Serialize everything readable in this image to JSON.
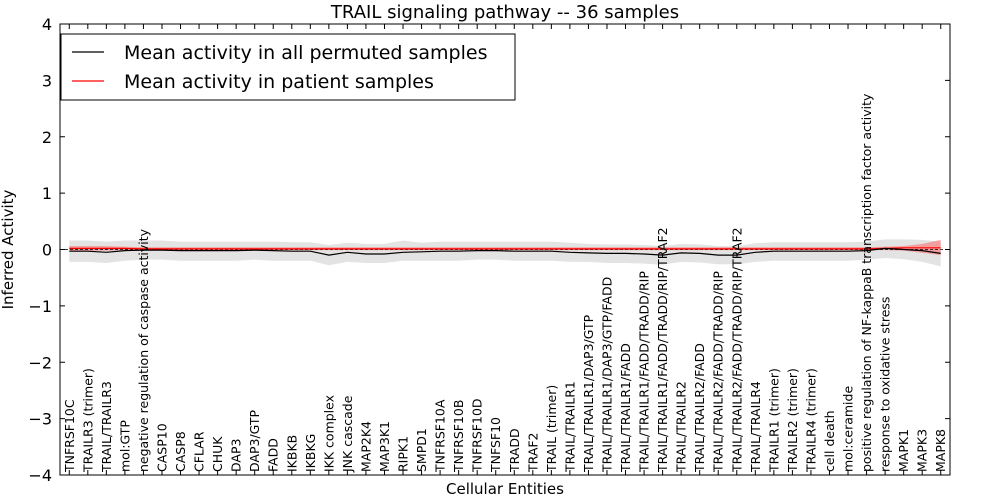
{
  "chart_data": {
    "type": "line",
    "title": "TRAIL signaling pathway -- 36 samples",
    "xlabel": "Cellular Entities",
    "ylabel": "Inferred Activity",
    "ylim": [
      -4,
      4
    ],
    "yticks": [
      -4,
      -3,
      -2,
      -1,
      0,
      1,
      2,
      3,
      4
    ],
    "ytick_labels": [
      "−4",
      "−3",
      "−2",
      "−1",
      "0",
      "1",
      "2",
      "3",
      "4"
    ],
    "grid": false,
    "legend_position": "top-left",
    "categories": [
      "TNFRSF10C",
      "TRAILR3 (trimer)",
      "TRAIL/TRAILR3",
      "mol:GTP",
      "negative regulation of caspase activity",
      "CASP10",
      "CASP8",
      "CFLAR",
      "CHUK",
      "DAP3",
      "DAP3/GTP",
      "FADD",
      "IKBKB",
      "IKBKG",
      "IKK complex",
      "JNK cascade",
      "MAP2K4",
      "MAP3K1",
      "RIPK1",
      "SMPD1",
      "TNFRSF10A",
      "TNFRSF10B",
      "TNFRSF10D",
      "TNFSF10",
      "TRADD",
      "TRAF2",
      "TRAIL (trimer)",
      "TRAIL/TRAILR1",
      "TRAIL/TRAILR1/DAP3/GTP",
      "TRAIL/TRAILR1/DAP3/GTP/FADD",
      "TRAIL/TRAILR1/FADD",
      "TRAIL/TRAILR1/FADD/TRADD/RIP",
      "TRAIL/TRAILR1/FADD/TRADD/RIP/TRAF2",
      "TRAIL/TRAILR2",
      "TRAIL/TRAILR2/FADD",
      "TRAIL/TRAILR2/FADD/TRADD/RIP",
      "TRAIL/TRAILR2/FADD/TRADD/RIP/TRAF2",
      "TRAIL/TRAILR4",
      "TRAILR1 (trimer)",
      "TRAILR2 (trimer)",
      "TRAILR4 (trimer)",
      "cell death",
      "mol:ceramide",
      "positive regulation of NF-kappaB transcription factor activity",
      "response to oxidative stress",
      "MAPK1",
      "MAPK3",
      "MAPK8"
    ],
    "series": [
      {
        "name": "Mean activity in all permuted samples",
        "color": "#000000",
        "values": [
          -0.03,
          -0.03,
          -0.05,
          -0.02,
          -0.01,
          -0.01,
          -0.02,
          -0.02,
          -0.02,
          -0.02,
          -0.01,
          -0.02,
          -0.03,
          -0.03,
          -0.1,
          -0.05,
          -0.08,
          -0.08,
          -0.05,
          -0.04,
          -0.03,
          -0.03,
          -0.02,
          -0.02,
          -0.03,
          -0.03,
          -0.03,
          -0.05,
          -0.06,
          -0.07,
          -0.07,
          -0.08,
          -0.1,
          -0.06,
          -0.07,
          -0.1,
          -0.1,
          -0.05,
          -0.03,
          -0.03,
          -0.03,
          -0.03,
          -0.03,
          -0.02,
          0.02,
          0.0,
          -0.02,
          -0.07
        ],
        "band_lower": [
          -0.22,
          -0.22,
          -0.24,
          -0.2,
          -0.18,
          -0.18,
          -0.2,
          -0.2,
          -0.2,
          -0.2,
          -0.18,
          -0.2,
          -0.2,
          -0.2,
          -0.28,
          -0.22,
          -0.24,
          -0.24,
          -0.2,
          -0.2,
          -0.2,
          -0.2,
          -0.18,
          -0.18,
          -0.2,
          -0.2,
          -0.2,
          -0.22,
          -0.22,
          -0.24,
          -0.24,
          -0.25,
          -0.27,
          -0.22,
          -0.23,
          -0.26,
          -0.26,
          -0.22,
          -0.2,
          -0.2,
          -0.2,
          -0.2,
          -0.2,
          -0.18,
          -0.15,
          -0.17,
          -0.22,
          -0.3
        ],
        "band_upper": [
          0.16,
          0.16,
          0.14,
          0.16,
          0.16,
          0.16,
          0.14,
          0.14,
          0.14,
          0.14,
          0.14,
          0.14,
          0.13,
          0.13,
          0.08,
          0.12,
          0.1,
          0.1,
          0.16,
          0.12,
          0.14,
          0.14,
          0.14,
          0.14,
          0.14,
          0.14,
          0.14,
          0.12,
          0.1,
          0.09,
          0.09,
          0.08,
          0.06,
          0.1,
          0.09,
          0.06,
          0.06,
          0.11,
          0.13,
          0.13,
          0.13,
          0.13,
          0.13,
          0.14,
          0.18,
          0.18,
          0.17,
          0.14
        ]
      },
      {
        "name": "Mean activity in patient samples",
        "color": "#ff0000",
        "values": [
          0.02,
          0.02,
          0.02,
          0.02,
          0.01,
          0.01,
          0.01,
          0.01,
          0.01,
          0.01,
          0.01,
          0.01,
          0.01,
          0.01,
          0.01,
          0.01,
          0.01,
          0.01,
          0.01,
          0.01,
          0.01,
          0.01,
          0.01,
          0.01,
          0.01,
          0.01,
          0.01,
          0.01,
          0.01,
          0.01,
          0.01,
          0.01,
          0.01,
          0.01,
          0.01,
          0.01,
          0.01,
          0.01,
          0.01,
          0.01,
          0.01,
          0.01,
          0.01,
          0.01,
          0.02,
          0.03,
          0.03,
          0.03
        ],
        "band_lower": [
          -0.02,
          -0.02,
          -0.02,
          -0.01,
          -0.01,
          -0.01,
          -0.01,
          -0.01,
          -0.01,
          -0.01,
          -0.01,
          -0.01,
          -0.01,
          -0.01,
          -0.01,
          -0.01,
          -0.01,
          -0.01,
          -0.01,
          -0.01,
          -0.01,
          -0.01,
          -0.01,
          -0.01,
          -0.01,
          -0.01,
          -0.01,
          -0.01,
          -0.01,
          -0.01,
          -0.01,
          -0.01,
          -0.01,
          -0.01,
          -0.01,
          -0.01,
          -0.01,
          -0.01,
          -0.01,
          -0.01,
          -0.01,
          -0.01,
          -0.01,
          -0.01,
          -0.01,
          -0.02,
          -0.06,
          -0.1
        ],
        "band_upper": [
          0.06,
          0.06,
          0.06,
          0.05,
          0.04,
          0.04,
          0.04,
          0.04,
          0.04,
          0.04,
          0.04,
          0.04,
          0.04,
          0.04,
          0.04,
          0.04,
          0.04,
          0.04,
          0.04,
          0.04,
          0.04,
          0.04,
          0.04,
          0.04,
          0.04,
          0.04,
          0.04,
          0.04,
          0.04,
          0.04,
          0.04,
          0.04,
          0.04,
          0.04,
          0.04,
          0.04,
          0.04,
          0.04,
          0.04,
          0.04,
          0.04,
          0.04,
          0.04,
          0.04,
          0.05,
          0.06,
          0.1,
          0.17
        ]
      }
    ],
    "band_colors": [
      "#cccccc",
      "#ff6666"
    ]
  }
}
